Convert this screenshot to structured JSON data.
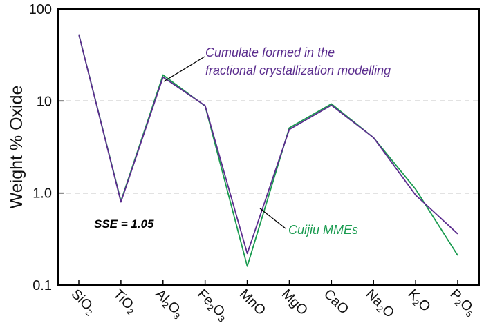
{
  "chart_data": {
    "type": "line",
    "title": "",
    "xlabel": "",
    "ylabel": "Weight % Oxide",
    "y_scale": "log",
    "ylim": [
      0.1,
      100
    ],
    "grid": "dashed at 1.0 and 10",
    "legend": "none (series labelled by annotations)",
    "y_ticks": [
      "0.1",
      "1.0",
      "10",
      "100"
    ],
    "categories": [
      {
        "parts": [
          {
            "t": "SiO",
            "s": false
          },
          {
            "t": "2",
            "s": true
          }
        ]
      },
      {
        "parts": [
          {
            "t": "TiO",
            "s": false
          },
          {
            "t": "2",
            "s": true
          }
        ]
      },
      {
        "parts": [
          {
            "t": "Al",
            "s": false
          },
          {
            "t": "2",
            "s": true
          },
          {
            "t": "O",
            "s": false
          },
          {
            "t": "3",
            "s": true
          }
        ]
      },
      {
        "parts": [
          {
            "t": "Fe",
            "s": false
          },
          {
            "t": "2",
            "s": true
          },
          {
            "t": "O",
            "s": false
          },
          {
            "t": "3",
            "s": true
          }
        ]
      },
      {
        "parts": [
          {
            "t": "MnO",
            "s": false
          }
        ]
      },
      {
        "parts": [
          {
            "t": "MgO",
            "s": false
          }
        ]
      },
      {
        "parts": [
          {
            "t": "CaO",
            "s": false
          }
        ]
      },
      {
        "parts": [
          {
            "t": "Na",
            "s": false
          },
          {
            "t": "2",
            "s": true
          },
          {
            "t": "O",
            "s": false
          }
        ]
      },
      {
        "parts": [
          {
            "t": "K",
            "s": false
          },
          {
            "t": "2",
            "s": true
          },
          {
            "t": "O",
            "s": false
          }
        ]
      },
      {
        "parts": [
          {
            "t": "P",
            "s": false
          },
          {
            "t": "2",
            "s": true
          },
          {
            "t": "O",
            "s": false
          },
          {
            "t": "5",
            "s": true
          }
        ]
      }
    ],
    "series": [
      {
        "name": "Cuijiu MMEs",
        "color": "#1a9b50",
        "values": [
          53,
          0.82,
          19.2,
          8.8,
          0.16,
          5.1,
          9.3,
          4.0,
          1.1,
          0.21
        ]
      },
      {
        "name": "Cumulate formed in the fractional crystallization modelling",
        "color": "#5b2d8e",
        "values": [
          53,
          0.8,
          18.2,
          8.9,
          0.22,
          4.9,
          9.0,
          4.0,
          0.95,
          0.36
        ]
      }
    ],
    "annotations": {
      "cumulate_line1": "Cumulate formed in the",
      "cumulate_line2": "fractional crystallization modelling",
      "mme": "Cuijiu MMEs",
      "sse": "SSE = 1.05"
    }
  }
}
